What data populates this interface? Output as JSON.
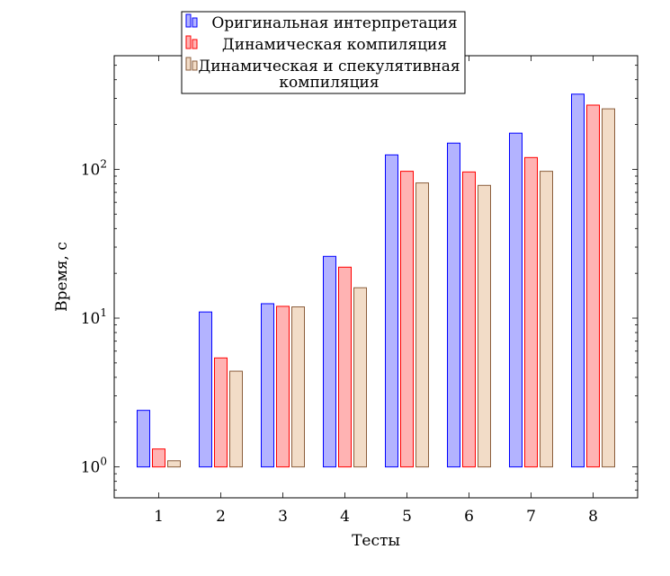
{
  "chart_data": {
    "type": "bar",
    "xlabel": "Тесты",
    "ylabel": "Время, с",
    "y_scale": "log",
    "ylim": [
      0.62,
      580
    ],
    "y_ticks": [
      {
        "value": 1,
        "label": "10^0"
      },
      {
        "value": 10,
        "label": "10^1"
      },
      {
        "value": 100,
        "label": "10^2"
      }
    ],
    "categories": [
      "1",
      "2",
      "3",
      "4",
      "5",
      "6",
      "7",
      "8"
    ],
    "legend_position": "top-center",
    "series": [
      {
        "name": "Оригинальная интерпретация",
        "fill": "#b3b3ff",
        "stroke": "#0000ff",
        "values": [
          2.4,
          11,
          12.5,
          26,
          125,
          150,
          175,
          320
        ]
      },
      {
        "name": "Динамическая компиляция",
        "fill": "#ffb3b3",
        "stroke": "#ff0000",
        "values": [
          1.32,
          5.4,
          12,
          22,
          97,
          96,
          120,
          270
        ]
      },
      {
        "name_lines": [
          "Динамическая и спекулятивная",
          "компиляция"
        ],
        "fill": "#f2dcc7",
        "stroke": "#8b5e3c",
        "values": [
          1.1,
          4.4,
          11.9,
          16,
          81,
          78,
          97,
          255
        ]
      }
    ]
  }
}
